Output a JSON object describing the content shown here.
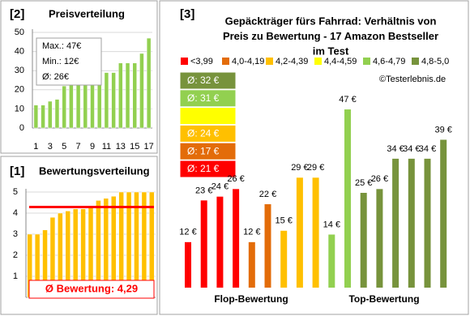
{
  "chart_data": [
    {
      "type": "bar",
      "label": "[2]",
      "title": "Preisverteilung",
      "x": [
        1,
        2,
        3,
        4,
        5,
        6,
        7,
        8,
        9,
        10,
        11,
        12,
        13,
        14,
        15,
        16,
        17
      ],
      "values": [
        12,
        12,
        14,
        15,
        22,
        23,
        24,
        25,
        26,
        26,
        29,
        29,
        34,
        34,
        34,
        39,
        47
      ],
      "color": "#92d050",
      "xlim": [
        0.5,
        17.5
      ],
      "xticks": [
        1,
        3,
        5,
        7,
        9,
        11,
        13,
        15,
        17
      ],
      "ylim": [
        0,
        50
      ],
      "yticks": [
        0,
        10,
        20,
        30,
        40,
        50
      ],
      "grid": true,
      "annotations": [
        "Max.: 47€",
        "Min.: 12€",
        "Ø: 26€"
      ]
    },
    {
      "type": "bar",
      "label": "[1]",
      "title": "Bewertungsverteilung",
      "x": [
        1,
        2,
        3,
        4,
        5,
        6,
        7,
        8,
        9,
        10,
        11,
        12,
        13,
        14,
        15,
        16,
        17
      ],
      "values": [
        3.0,
        3.0,
        3.2,
        3.8,
        4.0,
        4.1,
        4.2,
        4.2,
        4.3,
        4.6,
        4.7,
        4.8,
        5.0,
        5.0,
        5.0,
        5.0,
        5.0
      ],
      "color": "#ffc000",
      "xlim": [
        0.5,
        17.5
      ],
      "ylim": [
        0,
        5
      ],
      "yticks": [
        1,
        2,
        3,
        4,
        5
      ],
      "grid": true,
      "average": 4.29,
      "average_color": "#ff0000",
      "average_label": "Ø Bewertung: 4,29"
    },
    {
      "type": "bar",
      "label": "[3]",
      "title": [
        "Gepäckträger fürs Fahrrad: Verhältnis von",
        "Preis zu Bewertung - 17 Amazon Bestseller",
        "im Test"
      ],
      "values": [
        12,
        23,
        24,
        26,
        12,
        22,
        15,
        29,
        29,
        14,
        47,
        25,
        26,
        34,
        34,
        34,
        39
      ],
      "value_labels": [
        "12 €",
        "23 €",
        "24 €",
        "26 €",
        "12 €",
        "22 €",
        "15 €",
        "29 €",
        "29 €",
        "14 €",
        "47 €",
        "25 €",
        "26 €",
        "34 €",
        "34 €",
        "34 €",
        "39 €"
      ],
      "colors": [
        "#ff0000",
        "#ff0000",
        "#ff0000",
        "#ff0000",
        "#e36c09",
        "#e36c09",
        "#ffc000",
        "#ffc000",
        "#ffc000",
        "#92d050",
        "#92d050",
        "#77933c",
        "#77933c",
        "#77933c",
        "#77933c",
        "#77933c",
        "#77933c"
      ],
      "legend": [
        {
          "name": "<3,99",
          "color": "#ff0000",
          "avg_label": "Ø: 21 €"
        },
        {
          "name": "4,0-4,19",
          "color": "#e36c09",
          "avg_label": "Ø: 17 €"
        },
        {
          "name": "4,2-4,39",
          "color": "#ffc000",
          "avg_label": "Ø: 24 €"
        },
        {
          "name": "4,4-4,59",
          "color": "#ffff00"
        },
        {
          "name": "4,6-4,79",
          "color": "#92d050",
          "avg_label": "Ø: 31 €"
        },
        {
          "name": "4,8-5,0",
          "color": "#77933c",
          "avg_label": "Ø: 32 €"
        }
      ],
      "source": "©Testerlebnis.de",
      "group_labels": [
        "Flop-Bewertung",
        "Top-Bewertung"
      ]
    }
  ]
}
